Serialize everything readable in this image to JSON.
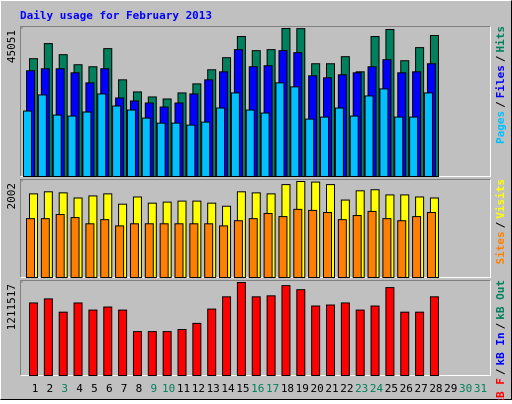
{
  "chart_data": {
    "type": "bar",
    "title": "Daily usage for February 2013",
    "categories": [
      "1",
      "2",
      "3",
      "4",
      "5",
      "6",
      "7",
      "8",
      "9",
      "10",
      "11",
      "12",
      "13",
      "14",
      "15",
      "16",
      "17",
      "18",
      "19",
      "20",
      "21",
      "22",
      "23",
      "24",
      "25",
      "26",
      "27",
      "28",
      "29",
      "30",
      "31"
    ],
    "category_colors": [
      "#000000",
      "#000000",
      "#00805c",
      "#000000",
      "#000000",
      "#000000",
      "#000000",
      "#000000",
      "#00805c",
      "#00805c",
      "#000000",
      "#000000",
      "#000000",
      "#000000",
      "#000000",
      "#00805c",
      "#00805c",
      "#000000",
      "#000000",
      "#000000",
      "#000000",
      "#000000",
      "#00805c",
      "#00805c",
      "#000000",
      "#000000",
      "#000000",
      "#000000",
      "#000000",
      "#00805c",
      "#00805c"
    ],
    "legend_separator": "/",
    "panels": [
      {
        "ylim": [
          0,
          45051
        ],
        "yticks": [
          45051
        ],
        "series": [
          {
            "name": "Pages",
            "color": "#00c0ff",
            "values": [
              19922,
              24826,
              18696,
              18390,
              19616,
              25133,
              21455,
              20229,
              17777,
              16244,
              16244,
              15631,
              16551,
              20842,
              25439,
              20229,
              19309,
              28504,
              27278,
              17470,
              18083,
              20842,
              18390,
              24520,
              26665,
              18083,
              18083,
              25439,
              null,
              null,
              null
            ]
          },
          {
            "name": "Files",
            "color": "#0000ff",
            "values": [
              32182,
              32795,
              32795,
              31569,
              28504,
              32795,
              23907,
              22987,
              22374,
              21148,
              22374,
              25133,
              29424,
              31876,
              38619,
              33408,
              33715,
              38312,
              37699,
              30650,
              30037,
              30956,
              31569,
              33408,
              35554,
              31569,
              31876,
              34328,
              null,
              null,
              null
            ]
          },
          {
            "name": "Hits",
            "color": "#00805c",
            "values": [
              35860,
              40458,
              37086,
              34021,
              33408,
              38925,
              29424,
              25746,
              24213,
              23600,
              25439,
              28198,
              32489,
              36166,
              42603,
              38312,
              38619,
              45051,
              45000,
              34328,
              34328,
              36473,
              31876,
              42603,
              44749,
              35247,
              39232,
              42909,
              null,
              null,
              null
            ]
          }
        ]
      },
      {
        "ylim": [
          0,
          2002
        ],
        "yticks": [
          2002
        ],
        "series": [
          {
            "name": "Sites",
            "color": "#ff8000",
            "values": [
              1227,
              1227,
              1313,
              1249,
              1120,
              1206,
              1076,
              1120,
              1120,
              1120,
              1120,
              1120,
              1120,
              1076,
              1184,
              1227,
              1335,
              1270,
              1421,
              1399,
              1356,
              1206,
              1292,
              1378,
              1227,
              1184,
              1270,
              1356,
              null,
              null,
              null
            ]
          },
          {
            "name": "Visits",
            "color": "#ffff00",
            "values": [
              1744,
              1787,
              1765,
              1658,
              1701,
              1744,
              1529,
              1679,
              1550,
              1572,
              1593,
              1593,
              1550,
              1486,
              1787,
              1765,
              1744,
              1937,
              2002,
              1990,
              1937,
              1615,
              1808,
              1830,
              1722,
              1722,
              1679,
              1658,
              null,
              null,
              null
            ]
          }
        ]
      },
      {
        "ylim": [
          0,
          1211517
        ],
        "yticks": [
          1211517
        ],
        "series": [
          {
            "name": "kB F",
            "color": "#ff0000",
            "values": [
              945000,
              998000,
              825000,
              945000,
              852000,
              892000,
              852000,
              572000,
              572000,
              572000,
              599000,
              679000,
              865000,
              1025000,
              1211517,
              1025000,
              1038000,
              1171000,
              1118000,
              905000,
              918000,
              945000,
              852000,
              905000,
              1145000,
              825000,
              825000,
              1025000,
              null,
              null,
              null
            ]
          },
          {
            "name": "kB In",
            "color": "#0000ff"
          },
          {
            "name": "kB Out",
            "color": "#00805c"
          }
        ]
      }
    ]
  }
}
